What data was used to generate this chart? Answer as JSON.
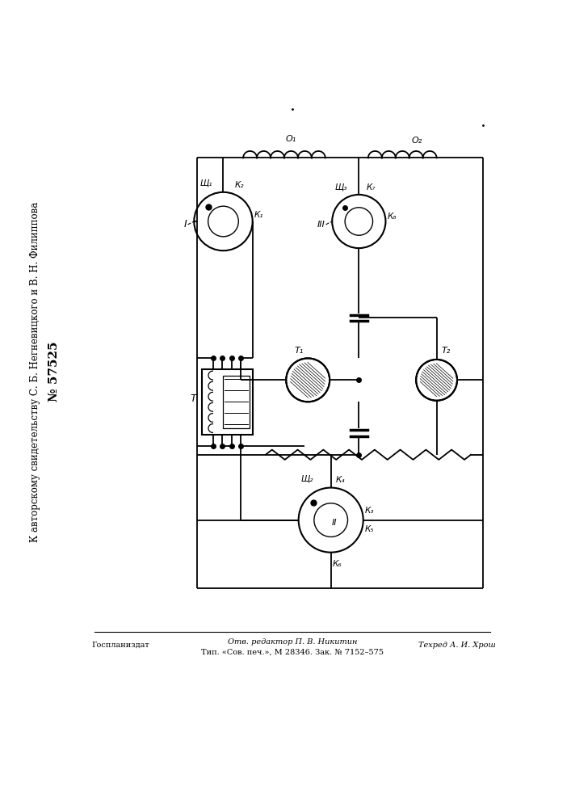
{
  "bg_color": "#ffffff",
  "line_color": "#000000",
  "fig_width": 7.07,
  "fig_height": 10.0,
  "title_line1": "К авторскому свидетельству С. Б. Негневицкого и В. Н. Филиппова",
  "patent_text": "№ 57525",
  "footer_left": "Госпланиздат",
  "footer_center_line1": "Отв. редактор П. В. Никитин",
  "footer_center_line2": "Тип. «Сов. печ.», М 28346. Зак. № 7152–575",
  "footer_right": "Техред А. И. Хрош",
  "label_Sh1": "Щ₁",
  "label_Sh2": "Щ₂",
  "label_Sh3": "Щ₃",
  "label_K1": "К₁",
  "label_K2": "К₂",
  "label_K3": "К₃",
  "label_K4": "К₄",
  "label_K5": "К₅",
  "label_K6": "К₆",
  "label_K7": "К₇",
  "label_K8": "К₈",
  "label_O1": "О₁",
  "label_O2": "О₂",
  "label_T": "Т",
  "label_T1": "Т₁",
  "label_T2": "Т₂",
  "label_I": "I",
  "label_II": "II",
  "label_III": "III"
}
